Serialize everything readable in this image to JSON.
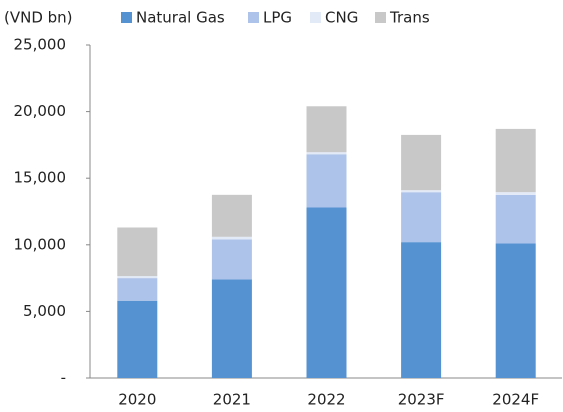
{
  "chart_data": {
    "type": "stacked_bar",
    "y_label": "(VND bn)",
    "categories": [
      "2020",
      "2021",
      "2022",
      "2023F",
      "2024F"
    ],
    "series": [
      {
        "name": "Natural Gas",
        "color": "#5592d2",
        "values": [
          5800,
          7400,
          12800,
          10200,
          10100
        ]
      },
      {
        "name": "LPG",
        "color": "#aec3e9",
        "values": [
          1700,
          3000,
          4000,
          3750,
          3650
        ]
      },
      {
        "name": "CNG",
        "color": "#e3eaf7",
        "values": [
          150,
          200,
          150,
          150,
          200
        ]
      },
      {
        "name": "Trans",
        "color": "#c8c8c8",
        "values": [
          3650,
          3150,
          3450,
          4150,
          4750
        ]
      }
    ],
    "ylim": [
      0,
      25000
    ],
    "yticks": [
      {
        "value": 0,
        "label": "-"
      },
      {
        "value": 5000,
        "label": "5,000"
      },
      {
        "value": 10000,
        "label": "10,000"
      },
      {
        "value": 15000,
        "label": "15,000"
      },
      {
        "value": 20000,
        "label": "20,000"
      },
      {
        "value": 25000,
        "label": "25,000"
      }
    ],
    "legend": "top"
  }
}
